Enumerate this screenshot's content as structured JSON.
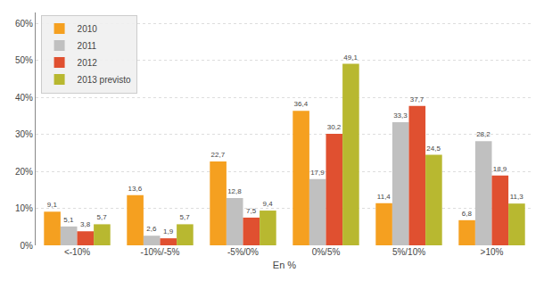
{
  "chart_data": {
    "type": "bar",
    "categories": [
      "<-10%",
      "-10%/-5%",
      "-5%/0%",
      "0%/5%",
      "5%/10%",
      ">10%"
    ],
    "series": [
      {
        "name": "2010",
        "color": "#F5A020",
        "values": [
          9.1,
          13.6,
          22.7,
          36.4,
          11.4,
          6.8
        ],
        "value_labels": [
          "9,1",
          "13,6",
          "22,7",
          "36,4",
          "11,4",
          "6,8"
        ]
      },
      {
        "name": "2011",
        "color": "#C0C0C0",
        "values": [
          5.1,
          2.6,
          12.8,
          17.9,
          33.3,
          28.2
        ],
        "value_labels": [
          "5,1",
          "2,6",
          "12,8",
          "17,9",
          "33,3",
          "28,2"
        ]
      },
      {
        "name": "2012",
        "color": "#E05030",
        "values": [
          3.8,
          1.9,
          7.5,
          30.2,
          37.7,
          18.9
        ],
        "value_labels": [
          "3,8",
          "1,9",
          "7,5",
          "30,2",
          "37,7",
          "18,9"
        ]
      },
      {
        "name": "2013 previsto",
        "color": "#B8B830",
        "values": [
          5.7,
          5.7,
          9.4,
          49.1,
          24.5,
          11.3
        ],
        "value_labels": [
          "5,7",
          "5,7",
          "9,4",
          "49,1",
          "24,5",
          "11,3"
        ]
      }
    ],
    "xlabel": "En %",
    "ylim": [
      0,
      63
    ],
    "yticks": [
      {
        "value": 0,
        "label": "0%"
      },
      {
        "value": 10,
        "label": "10%"
      },
      {
        "value": 20,
        "label": "20%"
      },
      {
        "value": 30,
        "label": "30%"
      },
      {
        "value": 40,
        "label": "40%"
      },
      {
        "value": 50,
        "label": "50%"
      },
      {
        "value": 60,
        "label": "60%"
      }
    ],
    "grid": true,
    "legend": "upper left",
    "data_labels": true
  }
}
